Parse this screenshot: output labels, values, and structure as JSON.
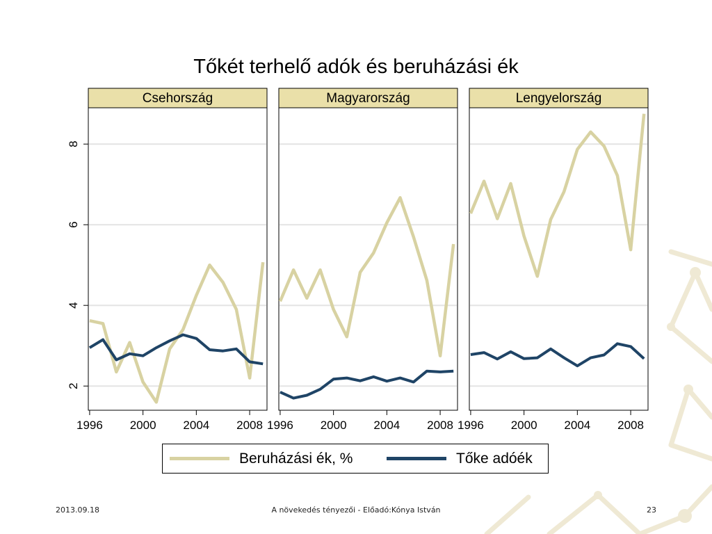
{
  "slide": {
    "title": "Tőkét terhelő adók és beruházási ék",
    "footer_date": "2013.09.18",
    "footer_center": "A növekedés tényezői -  Előadó:Kónya István",
    "page_number": "23"
  },
  "colors": {
    "series1": "#d8d2a2",
    "series2": "#1f4466",
    "panel_header_bg": "#eae0a9",
    "gridline": "#e4e4e4",
    "decoration": "#efe9d4"
  },
  "chart_data": {
    "type": "line",
    "x_ticks": [
      "1996",
      "2000",
      "2004",
      "2008"
    ],
    "y_ticks": [
      "2",
      "4",
      "6",
      "8"
    ],
    "xlim": [
      1995.9,
      2009.3
    ],
    "ylim": [
      1.4,
      8.9
    ],
    "grid": true,
    "legend": {
      "position": "bottom",
      "entries": [
        "Beruházási ék, %",
        "Tőke adóék"
      ]
    },
    "x": [
      1996,
      1997,
      1998,
      1999,
      2000,
      2001,
      2002,
      2003,
      2004,
      2005,
      2006,
      2007,
      2008,
      2009
    ],
    "panels": [
      {
        "title": "Csehország",
        "series": [
          {
            "name": "Beruházási ék, %",
            "values": [
              3.62,
              3.55,
              2.35,
              3.08,
              2.1,
              1.6,
              2.92,
              3.4,
              4.25,
              5.0,
              4.57,
              3.9,
              2.2,
              5.07
            ]
          },
          {
            "name": "Tőke adóék",
            "values": [
              2.95,
              3.15,
              2.65,
              2.8,
              2.75,
              2.95,
              3.12,
              3.27,
              3.18,
              2.9,
              2.87,
              2.92,
              2.6,
              2.55
            ]
          }
        ]
      },
      {
        "title": "Magyarország",
        "series": [
          {
            "name": "Beruházási ék, %",
            "values": [
              4.1,
              4.88,
              4.18,
              4.88,
              3.9,
              3.22,
              4.82,
              5.3,
              6.05,
              6.67,
              5.7,
              4.62,
              2.75,
              5.52
            ]
          },
          {
            "name": "Tőke adóék",
            "values": [
              1.85,
              1.7,
              1.77,
              1.92,
              2.17,
              2.2,
              2.13,
              2.23,
              2.12,
              2.2,
              2.1,
              2.37,
              2.35,
              2.37
            ]
          }
        ]
      },
      {
        "title": "Lengyelország",
        "series": [
          {
            "name": "Beruházási ék, %",
            "values": [
              6.28,
              7.08,
              6.15,
              7.02,
              5.72,
              4.72,
              6.13,
              6.82,
              7.87,
              8.3,
              7.95,
              7.22,
              5.38,
              8.75
            ]
          },
          {
            "name": "Tőke adóék",
            "values": [
              2.78,
              2.83,
              2.67,
              2.85,
              2.68,
              2.7,
              2.92,
              2.7,
              2.5,
              2.7,
              2.77,
              3.05,
              2.98,
              2.68
            ]
          }
        ]
      }
    ]
  }
}
